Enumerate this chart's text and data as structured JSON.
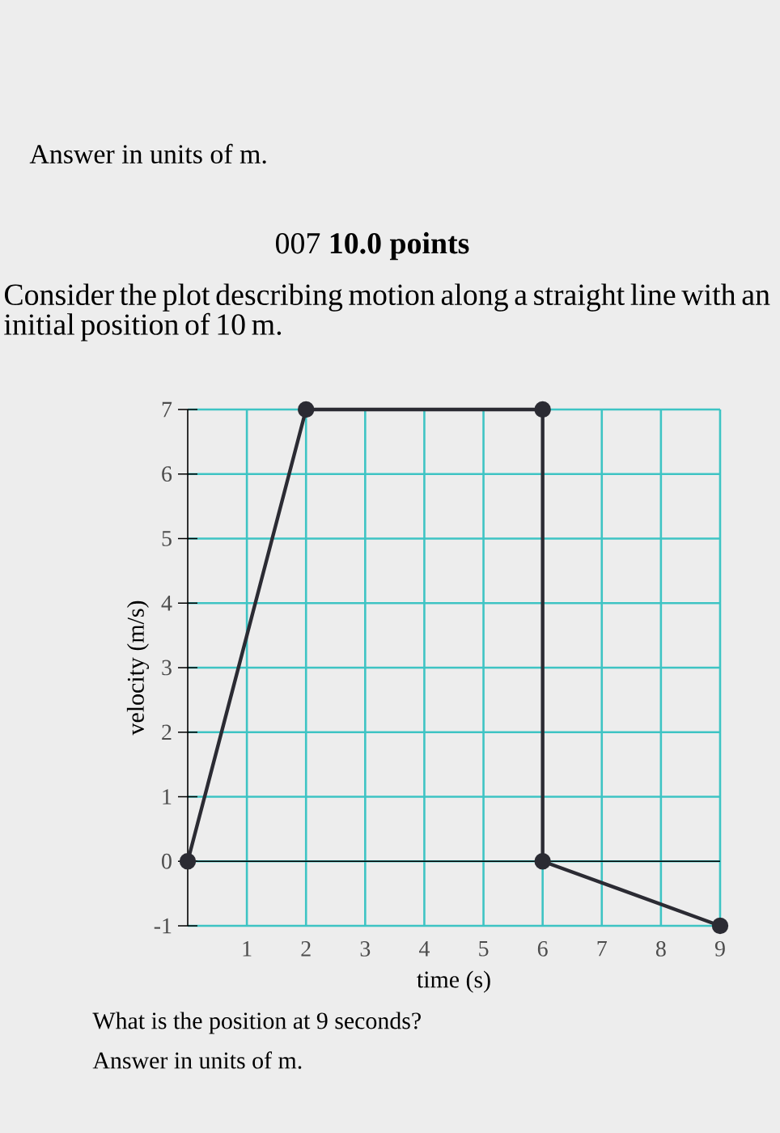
{
  "chart_data": {
    "type": "line",
    "title": "Consider the plot describing motion along a straight line with an initial position of 10 m.",
    "xlabel": "time (s)",
    "ylabel": "velocity (m/s)",
    "annotations": [
      "Answer in units of m.",
      "007    **10.0 points**",
      "What is the position at 9 seconds?",
      "Answer in units of m."
    ],
    "x": [
      0,
      2,
      6,
      6,
      9
    ],
    "values": [
      0,
      7,
      7,
      0,
      -1
    ],
    "color": "#2b2b33",
    "xlim": [
      0,
      9
    ],
    "ylim": [
      -1,
      7
    ],
    "xticks": [
      1,
      2,
      3,
      4,
      5,
      6,
      7,
      8,
      9
    ],
    "yticks": [
      -1,
      0,
      1,
      2,
      3,
      4,
      5,
      6,
      7
    ],
    "grid": true,
    "marker": "circle",
    "line_style": "solid",
    "ref_lines": [
      {
        "axis": "y",
        "value": 0,
        "label": null
      }
    ]
  }
}
